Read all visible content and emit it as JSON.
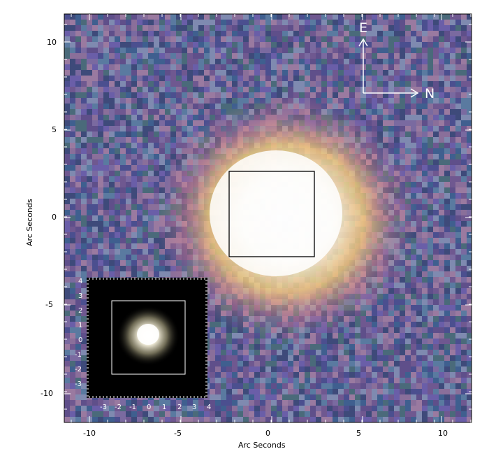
{
  "image": {
    "description_free": true,
    "main_axes": {
      "xlabel": "Arc Seconds",
      "ylabel": "Arc Seconds",
      "xlim": [
        -11.5,
        11.5
      ],
      "ylim": [
        -11.5,
        11.5
      ],
      "xticks": [
        "-10",
        "-5",
        "0",
        "5",
        "10"
      ],
      "yticks": [
        "10",
        "5",
        "0",
        "-5",
        "-10"
      ]
    },
    "inset_axes": {
      "xlim": [
        -4,
        4
      ],
      "ylim": [
        -3.5,
        4.5
      ],
      "xticks": [
        "-3",
        "-2",
        "-1",
        "0",
        "1",
        "2",
        "3",
        "4"
      ],
      "yticks": [
        "4",
        "3",
        "2",
        "1",
        "0",
        "-1",
        "-2",
        "-3"
      ]
    },
    "compass": {
      "east_label": "E",
      "north_label": "N"
    },
    "colors": {
      "background_noise": "#5f5a9a",
      "core": "#ffffff",
      "glow": "#ffd27a",
      "frame": "#000000",
      "inset_bg": "#000000",
      "inset_box": "#ffffff"
    }
  }
}
